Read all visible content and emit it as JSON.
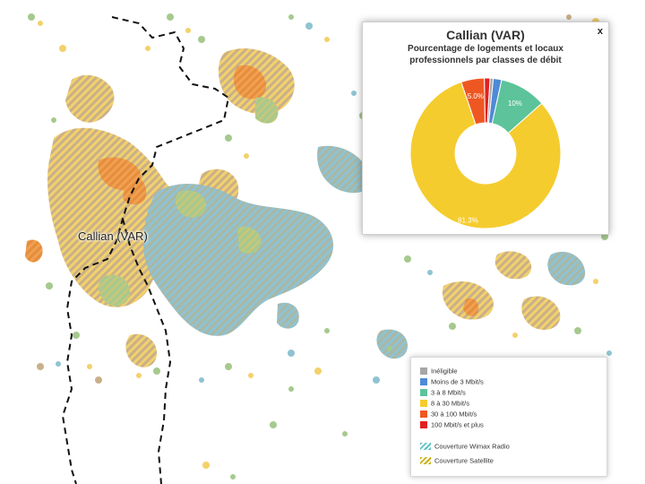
{
  "map": {
    "place_label": "Callian (VAR)"
  },
  "popup": {
    "title": "Callian (VAR)",
    "close_label": "x",
    "subtitle_line1": "Pourcentage de logements et locaux",
    "subtitle_line2": "professionnels par classes de débit"
  },
  "chart_data": {
    "type": "pie",
    "title": "Pourcentage de logements et locaux professionnels par classes de débit",
    "slices": [
      {
        "name": "Inéligible",
        "value": 0.7,
        "color": "#a6a6a6",
        "label": ""
      },
      {
        "name": "Moins de 3 Mbit/s",
        "value": 1.8,
        "color": "#4f8ad6",
        "label": ""
      },
      {
        "name": "3 à 8 Mbit/s",
        "value": 10.0,
        "color": "#5cc39a",
        "label": "10%"
      },
      {
        "name": "8 à 30 Mbit/s",
        "value": 81.3,
        "color": "#f5cc2e",
        "label": "81.3%"
      },
      {
        "name": "30 à 100 Mbit/s",
        "value": 5.0,
        "color": "#ef5722",
        "label": "5.0%"
      },
      {
        "name": "100 Mbit/s et plus",
        "value": 1.2,
        "color": "#e02020",
        "label": ""
      }
    ]
  },
  "legend": {
    "items": [
      {
        "label": "Inéligible",
        "color": "#a6a6a6"
      },
      {
        "label": "Moins de 3 Mbit/s",
        "color": "#4f8ad6"
      },
      {
        "label": "3 à 8 Mbit/s",
        "color": "#5cc39a"
      },
      {
        "label": "8 à 30 Mbit/s",
        "color": "#f5cc2e"
      },
      {
        "label": "30 à 100 Mbit/s",
        "color": "#ef5722"
      },
      {
        "label": "100 Mbit/s et plus",
        "color": "#e02020"
      }
    ],
    "hatch_items": [
      {
        "label": "Couverture Wimax Radio",
        "color": "#5cc3c3"
      },
      {
        "label": "Couverture Satellite",
        "color": "#c9b01a"
      }
    ]
  }
}
